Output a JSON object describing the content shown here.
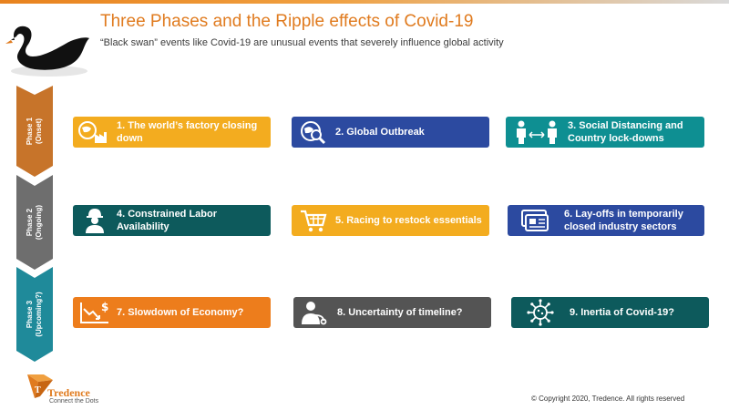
{
  "header": {
    "title": "Three Phases and the Ripple effects of Covid-19",
    "subtitle": "“Black swan” events like Covid-19 are unusual  events that severely influence global activity"
  },
  "phases": [
    {
      "line1": "Phase 1",
      "line2": "(Onset)",
      "color": "#c7742a"
    },
    {
      "line1": "Phase 2",
      "line2": "(Ongoing)",
      "color": "#6e6e6e"
    },
    {
      "line1": "Phase 3",
      "line2": "(Upcoming?)",
      "color": "#1f8a9a"
    }
  ],
  "cards": [
    {
      "label": "1. The world’s factory closing down",
      "icon": "factory-globe-icon",
      "color": "#f3ac1f"
    },
    {
      "label": "2. Global Outbreak",
      "icon": "globe-magnifier-icon",
      "color": "#2c4aa0"
    },
    {
      "label": "3. Social Distancing and Country lock-downs",
      "icon": "social-distance-icon",
      "color": "#0e8f92"
    },
    {
      "label": "4. Constrained Labor Availability",
      "icon": "worker-icon",
      "color": "#0d5a5c"
    },
    {
      "label": "5. Racing to restock essentials",
      "icon": "shopping-cart-icon",
      "color": "#f3ac1f"
    },
    {
      "label": "6. Lay-offs in temporarily closed industry sectors",
      "icon": "id-card-icon",
      "color": "#2c4aa0"
    },
    {
      "label": "7. Slowdown of Economy?",
      "icon": "declining-chart-icon",
      "color": "#ed7d1c"
    },
    {
      "label": "8. Uncertainty of timeline?",
      "icon": "doctor-icon",
      "color": "#545454"
    },
    {
      "label": "9. Inertia of Covid-19?",
      "icon": "virus-icon",
      "color": "#0d5a5c"
    }
  ],
  "footer": {
    "brand": "Tredence",
    "tagline": "Connect the Dots",
    "copyright": "© Copyright 2020, Tredence. All rights reserved"
  }
}
